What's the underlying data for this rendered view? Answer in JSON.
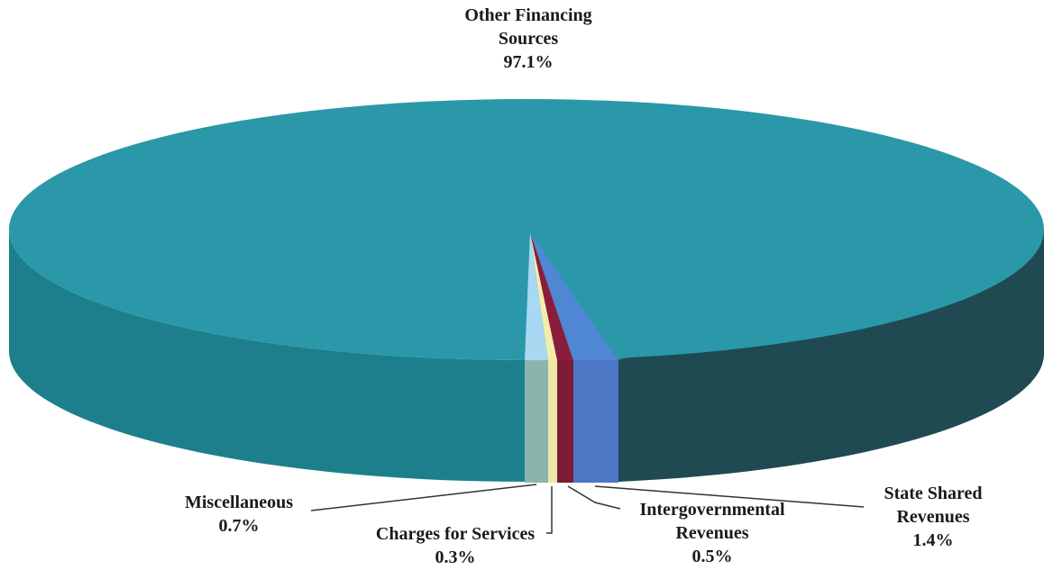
{
  "chart_data": {
    "type": "pie",
    "style": "3d",
    "title": "",
    "slices": [
      {
        "line1": "Other Financing",
        "line2": "Sources",
        "value": 97.1,
        "value_text": "97.1%",
        "color": "#2a98a8"
      },
      {
        "line1": "State Shared",
        "line2": "Revenues",
        "value": 1.4,
        "value_text": "1.4%",
        "color": "#4f87d4"
      },
      {
        "line1": "Intergovernmental",
        "line2": "Revenues",
        "value": 0.5,
        "value_text": "0.5%",
        "color": "#8c1c3c"
      },
      {
        "line1": "Charges for Services",
        "line2": "",
        "value": 0.3,
        "value_text": "0.3%",
        "color": "#f2eeaa"
      },
      {
        "line1": "Miscellaneous",
        "line2": "",
        "value": 0.7,
        "value_text": "0.7%",
        "color": "#a8d8f2"
      }
    ],
    "legend": "none (leader-line labels)"
  }
}
